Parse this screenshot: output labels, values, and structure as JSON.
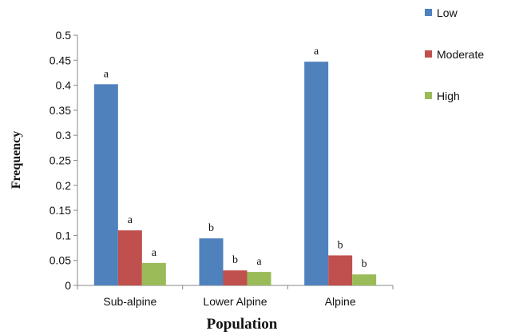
{
  "chart_data": {
    "type": "bar",
    "title": "",
    "xlabel": "Population",
    "ylabel": "Frequency",
    "categories": [
      "Sub-alpine",
      "Lower Alpine",
      "Alpine"
    ],
    "ylim": [
      0,
      0.5
    ],
    "yticks": [
      "0",
      "0.05",
      "0.1",
      "0.15",
      "0.2",
      "0.25",
      "0.3",
      "0.35",
      "0.4",
      "0.45",
      "0.5"
    ],
    "grid": false,
    "legend_position": "top-right",
    "series": [
      {
        "name": "Low",
        "color": "#4F81BD",
        "values": [
          0.402,
          0.094,
          0.447
        ],
        "labels": [
          "a",
          "b",
          "a"
        ]
      },
      {
        "name": "Moderate",
        "color": "#C0504D",
        "values": [
          0.11,
          0.03,
          0.06
        ],
        "labels": [
          "a",
          "b",
          "b"
        ]
      },
      {
        "name": "High",
        "color": "#9BBB59",
        "values": [
          0.045,
          0.027,
          0.022
        ],
        "labels": [
          "a",
          "a",
          "b"
        ]
      }
    ]
  }
}
